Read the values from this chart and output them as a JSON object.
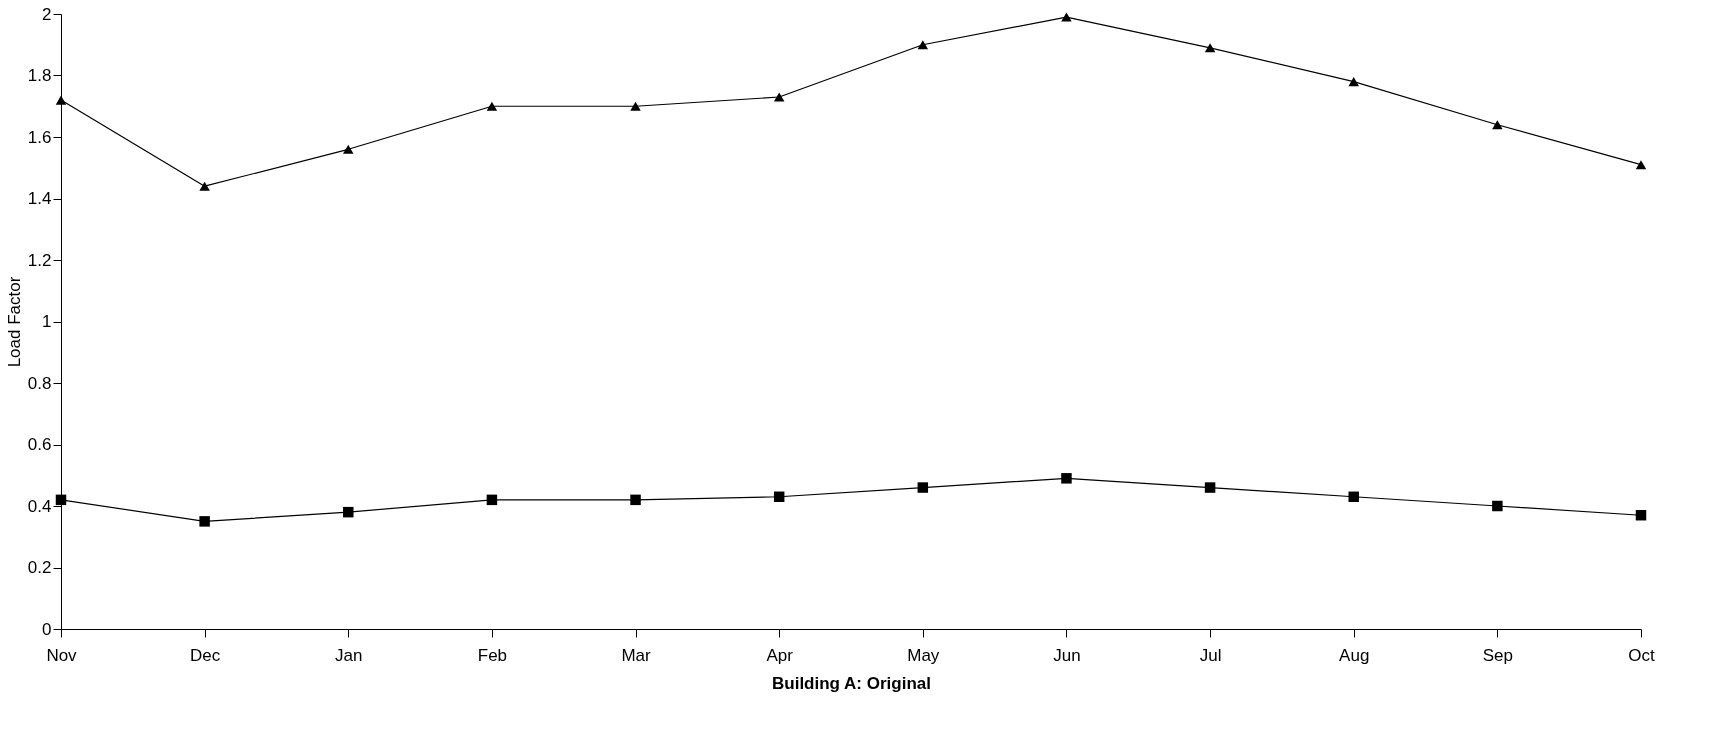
{
  "chart_data": {
    "type": "line",
    "xlabel": "Building A:  Original",
    "ylabel": "Load Factor",
    "categories": [
      "Nov",
      "Dec",
      "Jan",
      "Feb",
      "Mar",
      "Apr",
      "May",
      "Jun",
      "Jul",
      "Aug",
      "Sep",
      "Oct"
    ],
    "series": [
      {
        "color": "#000000",
        "marker": "triangle",
        "values": [
          1.72,
          1.44,
          1.56,
          1.7,
          1.7,
          1.73,
          1.9,
          1.99,
          1.89,
          1.78,
          1.64,
          1.51
        ]
      },
      {
        "color": "#000000",
        "marker": "square",
        "values": [
          0.42,
          0.35,
          0.38,
          0.42,
          0.42,
          0.43,
          0.46,
          0.49,
          0.46,
          0.43,
          0.4,
          0.37
        ]
      }
    ],
    "ylim": [
      0,
      2
    ],
    "yticks": [
      0,
      0.2,
      0.4,
      0.6,
      0.8,
      1,
      1.2,
      1.4,
      1.6,
      1.8,
      2
    ],
    "line_style": "solid"
  }
}
